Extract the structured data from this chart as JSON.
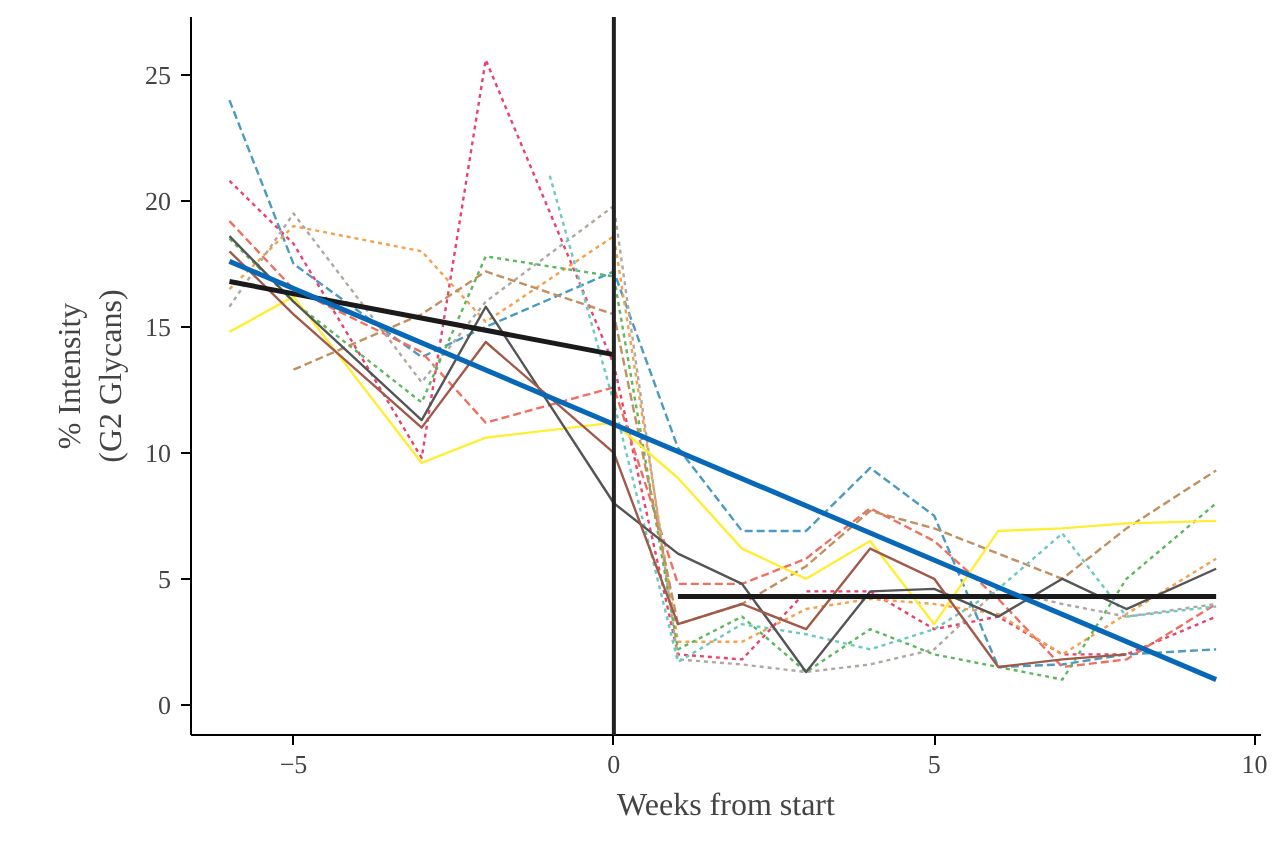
{
  "chart_data": {
    "type": "line",
    "xlabel": "Weeks from start",
    "ylabel": "% Intensity\n(G2 Glycans)",
    "xlim": [
      -6.6,
      10.1
    ],
    "ylim": [
      -1.2,
      27.3
    ],
    "xticks": [
      -5,
      0,
      5,
      10
    ],
    "yticks": [
      0,
      5,
      10,
      15,
      20,
      25
    ],
    "grid": false,
    "ref_lines": [
      {
        "axis": "x",
        "value": 0,
        "color": "#222222",
        "line_style": "solid"
      }
    ],
    "series": [
      {
        "color": "#4a9bbf",
        "line_style": "dashed",
        "x": [
          -6,
          -5,
          -3,
          -2,
          0,
          1,
          2,
          3,
          4,
          5,
          6,
          7,
          8,
          9.4
        ],
        "values": [
          24,
          17.5,
          13.8,
          15,
          17.2,
          10.2,
          6.9,
          6.9,
          9.4,
          7.5,
          1.5,
          1.6,
          2.0,
          2.2
        ]
      },
      {
        "color": "#e8436e",
        "line_style": "dotted",
        "x": [
          -6,
          -5,
          -3,
          -2,
          0,
          1,
          2,
          3,
          4,
          5,
          6,
          7,
          8,
          9.4
        ],
        "values": [
          20.8,
          18.3,
          9.8,
          25.6,
          13.5,
          2.0,
          1.8,
          4.5,
          4.5,
          3.0,
          3.5,
          2.0,
          2.0,
          3.5
        ]
      },
      {
        "color": "#f07060",
        "line_style": "dashed",
        "x": [
          -6,
          -5,
          -3,
          -2,
          0,
          1,
          2,
          3,
          4,
          5,
          6,
          7,
          8,
          9.4
        ],
        "values": [
          19.2,
          16.5,
          14,
          11.2,
          12.6,
          4.8,
          4.8,
          5.8,
          7.8,
          6.5,
          4.2,
          1.5,
          1.8,
          4.0
        ]
      },
      {
        "color": "#f5a04a",
        "line_style": "dotted",
        "x": [
          -6,
          -5,
          -3,
          -2,
          0,
          1,
          2,
          3,
          4,
          5,
          6,
          7,
          8,
          9.4
        ],
        "values": [
          16.5,
          19,
          18,
          15.2,
          18.6,
          2.5,
          2.5,
          3.8,
          4.2,
          4.0,
          3.6,
          2.0,
          3.6,
          5.8
        ]
      },
      {
        "color": "#b0a8a0",
        "line_style": "dotted",
        "x": [
          -6,
          -5,
          -3,
          -2,
          0,
          1,
          2,
          3,
          4,
          5,
          6,
          7,
          8,
          9.4
        ],
        "values": [
          15.8,
          19.5,
          12.8,
          16,
          19.8,
          1.8,
          1.6,
          1.3,
          1.6,
          2.2,
          4.6,
          4.0,
          3.5,
          4.0
        ]
      },
      {
        "color": "#5cb85c",
        "line_style": "dotted",
        "x": [
          -6,
          -5,
          -3,
          -2,
          0,
          1,
          2,
          3,
          4,
          5,
          6,
          7,
          8,
          9.4
        ],
        "values": [
          18.5,
          16,
          12,
          17.8,
          17,
          2.2,
          3.5,
          1.3,
          3.0,
          2.0,
          1.5,
          1.0,
          5.0,
          8.0
        ]
      },
      {
        "color": "#c09060",
        "line_style": "dashed",
        "x": [
          -5,
          -3,
          -2,
          0,
          1,
          2,
          3,
          4,
          5,
          6,
          7,
          8,
          9.4
        ],
        "values": [
          13.3,
          15.5,
          17.2,
          15.5,
          3.2,
          4.0,
          5.5,
          7.7,
          7.0,
          6.0,
          5.0,
          7.0,
          9.3
        ]
      },
      {
        "color": "#ffee33",
        "line_style": "solid",
        "x": [
          -6,
          -5,
          -3,
          -2,
          0,
          1,
          2,
          3,
          4,
          5,
          6,
          7,
          8,
          9.4
        ],
        "values": [
          14.8,
          16.2,
          9.6,
          10.6,
          11.2,
          9.0,
          6.2,
          5.0,
          6.5,
          3.2,
          6.9,
          7.0,
          7.2,
          7.3
        ]
      },
      {
        "color": "#6cc8c0",
        "line_style": "dotted",
        "x": [
          -1,
          0,
          1,
          2,
          3,
          4,
          5,
          6,
          7,
          8,
          9.4
        ],
        "values": [
          21,
          12,
          1.7,
          3.2,
          2.8,
          2.2,
          3.0,
          4.6,
          6.8,
          3.5,
          3.9
        ]
      },
      {
        "color": "#555555",
        "line_style": "solid",
        "x": [
          -6,
          -5,
          -3,
          -2,
          0,
          1,
          2,
          3,
          4,
          5,
          6,
          7,
          8,
          9.4
        ],
        "values": [
          18.6,
          16,
          11.3,
          15.8,
          8,
          6.0,
          4.8,
          1.3,
          4.5,
          4.6,
          3.5,
          5.0,
          3.8,
          5.4
        ]
      },
      {
        "color": "#a05a4a",
        "line_style": "solid",
        "x": [
          -6,
          -5,
          -3,
          -2,
          0,
          1,
          2,
          3,
          4,
          5,
          6,
          7,
          8
        ],
        "values": [
          18,
          15.5,
          11,
          14.4,
          10,
          3.2,
          4.0,
          3.0,
          6.2,
          5.0,
          1.5,
          1.8,
          2.0
        ]
      },
      {
        "color": "#1a1a1a",
        "line_style": "solid",
        "x": [
          -6,
          0
        ],
        "values": [
          16.8,
          13.9
        ]
      },
      {
        "color": "#1a1a1a",
        "line_style": "solid",
        "x": [
          1,
          9.4
        ],
        "values": [
          4.3,
          4.3
        ]
      },
      {
        "color": "#0868b8",
        "line_style": "solid",
        "x": [
          -6,
          9.4
        ],
        "values": [
          17.6,
          1.0
        ]
      }
    ]
  }
}
